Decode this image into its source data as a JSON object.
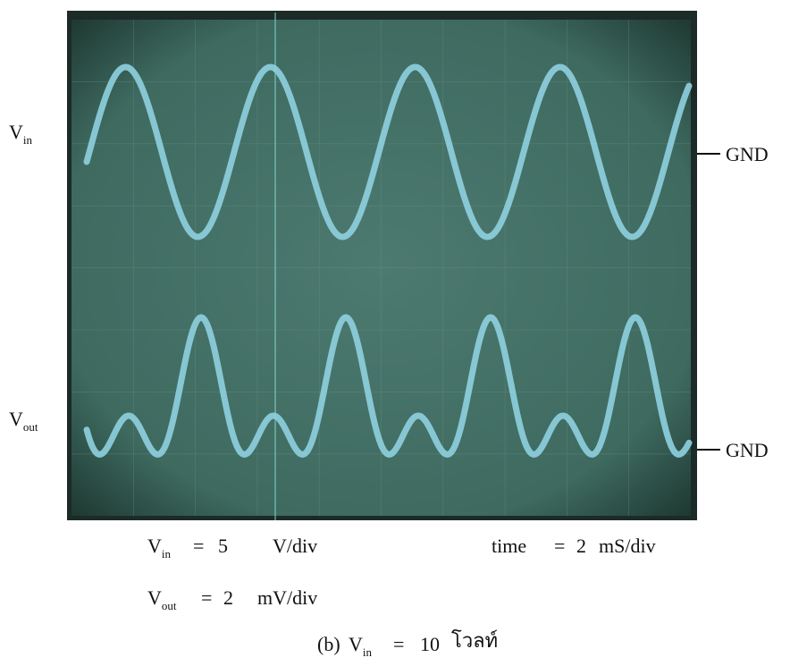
{
  "channel_labels": [
    {
      "symbol": "V",
      "subscript": "in"
    },
    {
      "symbol": "V",
      "subscript": "out"
    }
  ],
  "ground_markers": [
    "GND",
    "GND"
  ],
  "settings": {
    "vin": {
      "symbol": "V",
      "subscript": "in",
      "equals": "=",
      "value": 5,
      "unit": "V/div"
    },
    "time": {
      "label": "time",
      "equals": "=",
      "value": 2,
      "unit": "mS/div"
    },
    "vout": {
      "symbol": "V",
      "subscript": "out",
      "equals": "=",
      "value": 2,
      "unit": "mV/div"
    }
  },
  "caption": {
    "prefix": "(b)",
    "symbol": "V",
    "subscript": "in",
    "equals": "=",
    "value": 10,
    "unit": "โวลท์"
  }
}
